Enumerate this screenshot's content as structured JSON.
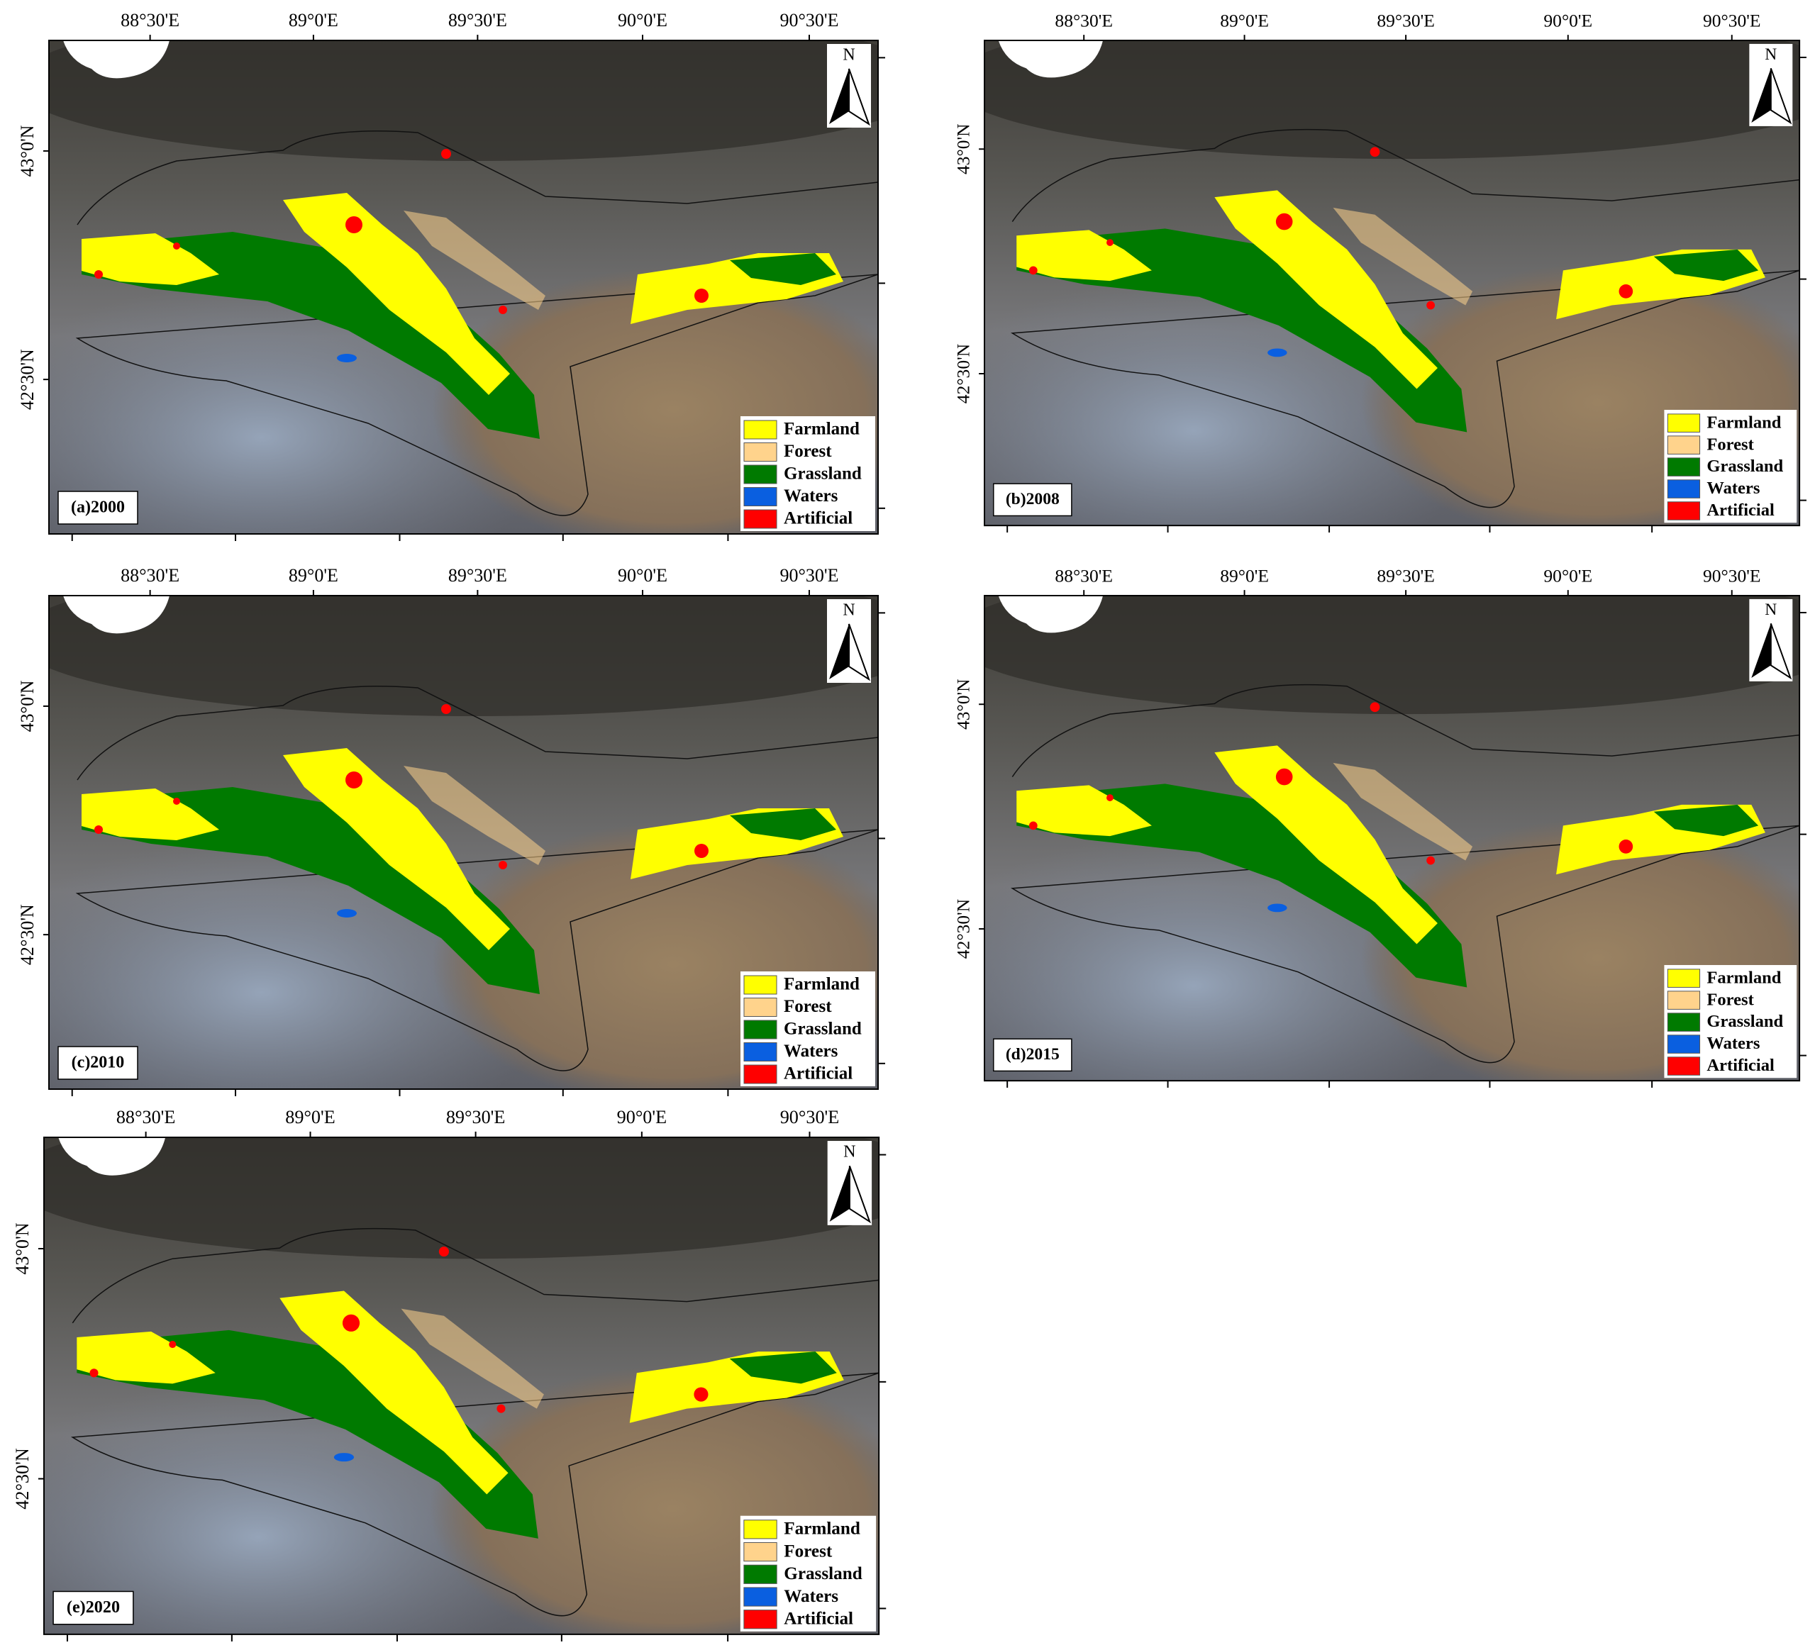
{
  "north": "N",
  "longitude_labels": [
    "88°30'E",
    "89°0'E",
    "89°30'E",
    "90°0'E",
    "90°30'E"
  ],
  "latitude_labels": [
    "43°0'N",
    "42°30'N"
  ],
  "legend": [
    {
      "name": "Farmland",
      "color": "#ffff00"
    },
    {
      "name": "Forest",
      "color": "#ffd38c"
    },
    {
      "name": "Grassland",
      "color": "#007a00"
    },
    {
      "name": "Waters",
      "color": "#0a5fe0"
    },
    {
      "name": "Artificial",
      "color": "#ff0000"
    }
  ],
  "panels": [
    {
      "label": "(a)2000"
    },
    {
      "label": "(b)2008"
    },
    {
      "label": "(c)2010"
    },
    {
      "label": "(d)2015"
    },
    {
      "label": "(e)2020"
    }
  ]
}
